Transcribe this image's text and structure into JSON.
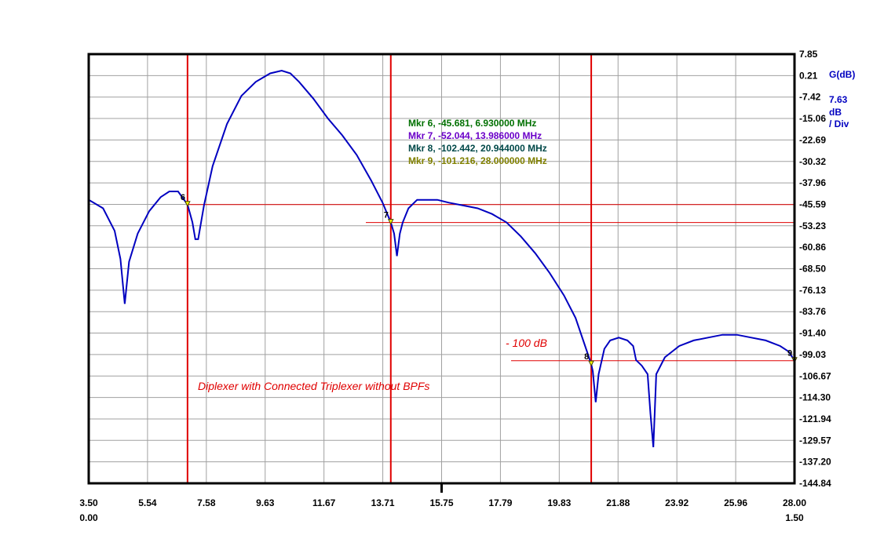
{
  "chart_data": {
    "type": "line",
    "title": "",
    "ylabel": "G(dB)",
    "scale_per_div": "7.63",
    "scale_unit_1": "dB",
    "scale_unit_2": "/ Div",
    "xlim": [
      3.5,
      28.0
    ],
    "ylim": [
      -144.84,
      7.85
    ],
    "x_tick_labels": [
      "3.50",
      "5.54",
      "7.58",
      "9.63",
      "11.67",
      "13.71",
      "15.75",
      "17.79",
      "19.83",
      "21.88",
      "23.92",
      "25.96",
      "28.00"
    ],
    "x_sub_labels": {
      "left": "0.00",
      "right": "1.50"
    },
    "y_tick_labels": [
      "7.85",
      "0.21",
      "-7.42",
      "-15.06",
      "-22.69",
      "-30.32",
      "-37.96",
      "-45.59",
      "-53.23",
      "-60.86",
      "-68.50",
      "-76.13",
      "-83.76",
      "-91.40",
      "-99.03",
      "-106.67",
      "-114.30",
      "-121.94",
      "-129.57",
      "-137.20",
      "-144.84"
    ],
    "grid": true,
    "series": [
      {
        "color": "#0000c0",
        "x": [
          3.5,
          4.0,
          4.4,
          4.6,
          4.75,
          4.9,
          5.2,
          5.6,
          6.0,
          6.3,
          6.6,
          6.93,
          7.1,
          7.2,
          7.3,
          7.5,
          7.8,
          8.3,
          8.8,
          9.3,
          9.8,
          10.2,
          10.5,
          10.8,
          11.3,
          11.8,
          12.3,
          12.8,
          13.3,
          13.7,
          13.986,
          14.1,
          14.2,
          14.3,
          14.4,
          14.6,
          14.9,
          15.3,
          15.6,
          16.0,
          16.5,
          17.0,
          17.5,
          18.0,
          18.5,
          19.0,
          19.5,
          20.0,
          20.4,
          20.7,
          20.944,
          21.0,
          21.1,
          21.2,
          21.4,
          21.6,
          21.9,
          22.2,
          22.4,
          22.5,
          22.7,
          22.9,
          23.0,
          23.1,
          23.2,
          23.5,
          24.0,
          24.5,
          25.0,
          25.5,
          26.0,
          26.5,
          27.0,
          27.5,
          27.8,
          28.0
        ],
        "y": [
          -44,
          -47,
          -55,
          -65,
          -81,
          -66,
          -56,
          -48,
          -43,
          -41,
          -41,
          -45.681,
          -52,
          -58,
          -58,
          -46,
          -32,
          -17,
          -7,
          -2,
          1,
          2,
          1,
          -2,
          -8,
          -15,
          -21,
          -28,
          -37,
          -45,
          -52.044,
          -56,
          -64,
          -56,
          -52,
          -47,
          -44,
          -44,
          -44,
          -45,
          -46,
          -47,
          -49,
          -52,
          -57,
          -63,
          -70,
          -78,
          -86,
          -95,
          -102.442,
          -105,
          -116,
          -106,
          -97,
          -94,
          -93,
          -94,
          -96,
          -101,
          -103,
          -106,
          -120,
          -132,
          -106,
          -100,
          -96,
          -94,
          -93,
          -92,
          -92,
          -93,
          -94,
          -96,
          -98,
          -101.216
        ]
      }
    ],
    "markers": [
      {
        "num": "6",
        "label": "Mkr 6, -45.681, 6.930000 MHz",
        "x": 6.93,
        "y": -45.681,
        "color": "#007000"
      },
      {
        "num": "7",
        "label": "Mkr 7, -52.044, 13.986000 MHz",
        "x": 13.986,
        "y": -52.044,
        "color": "#6a00c8"
      },
      {
        "num": "8",
        "label": "Mkr 8, -102.442, 20.944000 MHz",
        "x": 20.944,
        "y": -102.442,
        "color": "#004848"
      },
      {
        "num": "9",
        "label": "Mkr 9, -101.216, 28.000000 MHz",
        "x": 28.0,
        "y": -101.216,
        "color": "#808000"
      }
    ],
    "vertical_lines_x": [
      6.93,
      13.986,
      20.944
    ],
    "horizontal_lines_y": [
      -45.681,
      -52.044,
      -101.216
    ],
    "annotations": [
      {
        "text": "- 100 dB"
      },
      {
        "text": "Diplexer with Connected Triplexer without BPFs"
      }
    ]
  },
  "colors": {
    "trace": "#0000c0",
    "ref_lines": "#e00000",
    "axis": "#000000",
    "grid": "#a0a0a0",
    "scale_text": "#0000c0"
  }
}
